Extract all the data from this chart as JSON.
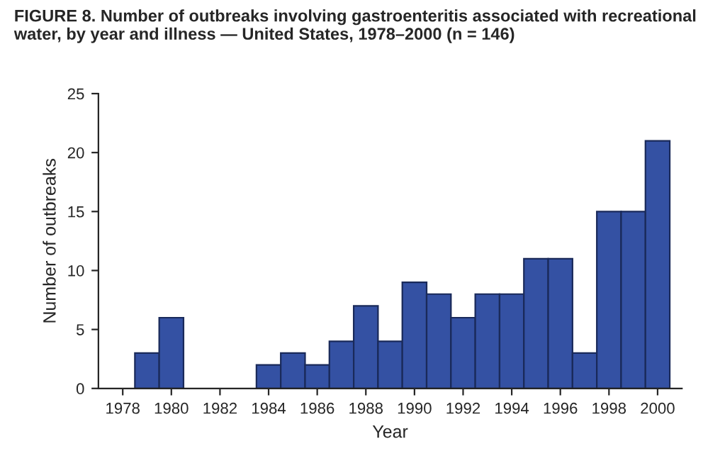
{
  "chart_data": {
    "type": "bar",
    "title": "FIGURE 8. Number of outbreaks involving gastroenteritis associated with recreational water, by year and illness — United States, 1978–2000 (n = 146)",
    "xlabel": "Year",
    "ylabel": "Number of outbreaks",
    "x": [
      1978,
      1979,
      1980,
      1981,
      1982,
      1983,
      1984,
      1985,
      1986,
      1987,
      1988,
      1989,
      1990,
      1991,
      1992,
      1993,
      1994,
      1995,
      1996,
      1997,
      1998,
      1999,
      2000
    ],
    "values": [
      0,
      3,
      6,
      0,
      0,
      0,
      2,
      3,
      2,
      4,
      7,
      4,
      9,
      8,
      6,
      8,
      8,
      11,
      11,
      3,
      15,
      15,
      21
    ],
    "color": "#3451a3",
    "xlim": [
      1977,
      2001
    ],
    "xticks": [
      1978,
      1980,
      1982,
      1984,
      1986,
      1988,
      1990,
      1992,
      1994,
      1996,
      1998,
      2000
    ],
    "ylim": [
      0,
      25
    ],
    "yticks": [
      0,
      5,
      10,
      15,
      20,
      25
    ],
    "grid": false,
    "legend": false
  }
}
